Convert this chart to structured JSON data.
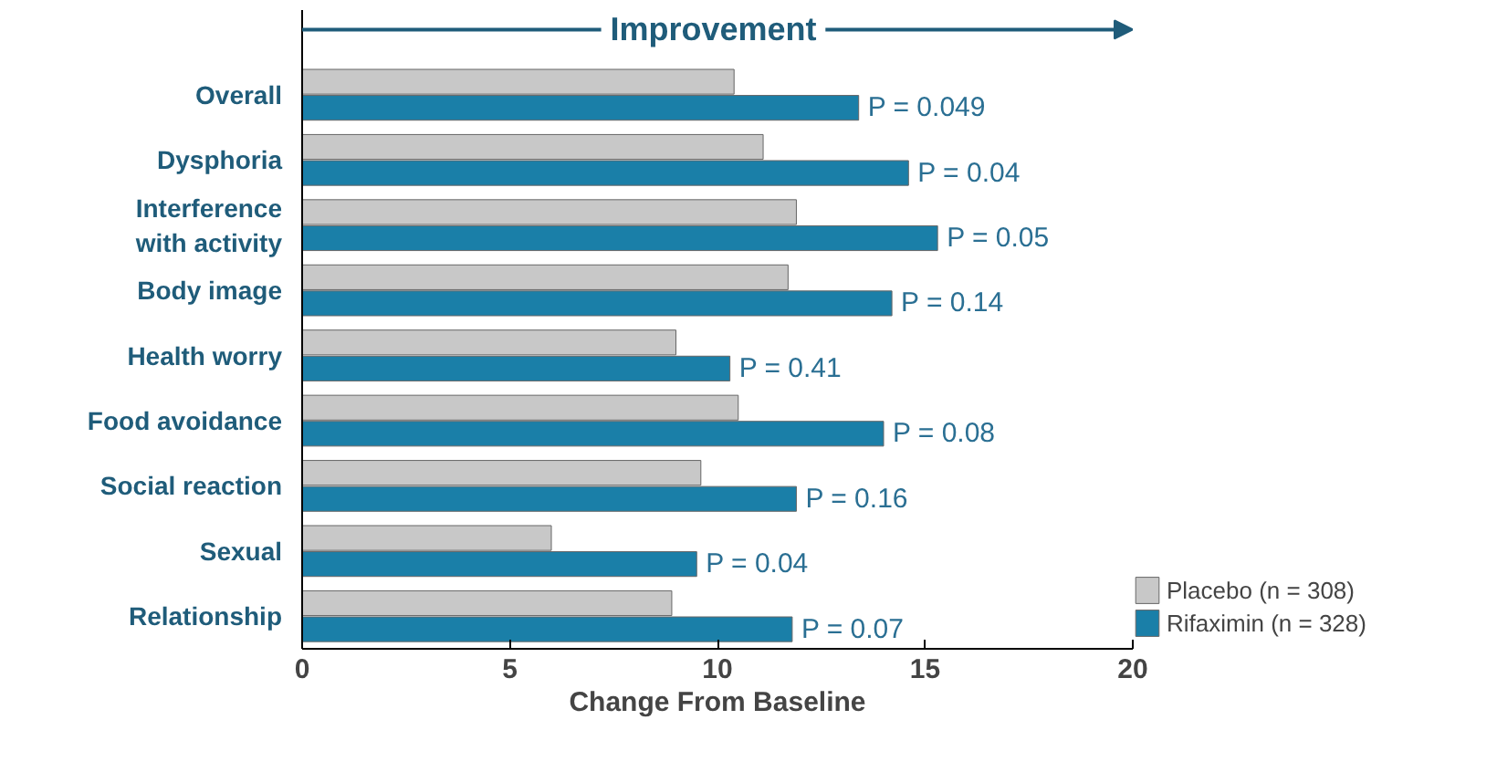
{
  "chart_data": {
    "type": "bar",
    "orientation": "horizontal",
    "xlabel": "Change From Baseline",
    "annotations": [
      "Improvement",
      {
        "text": "P = 0.049",
        "x": 13.4,
        "y": "Overall"
      },
      {
        "text": "P = 0.04",
        "x": 14.6,
        "y": "Dysphoria"
      },
      {
        "text": "P = 0.05",
        "x": 15.3,
        "y": "Interference\nwith activity"
      },
      {
        "text": "P = 0.14",
        "x": 14.2,
        "y": "Body image"
      },
      {
        "text": "P = 0.41",
        "x": 10.3,
        "y": "Health worry"
      },
      {
        "text": "P = 0.08",
        "x": 14.0,
        "y": "Food avoidance"
      },
      {
        "text": "P = 0.16",
        "x": 11.9,
        "y": "Social reaction"
      },
      {
        "text": "P = 0.04",
        "x": 9.5,
        "y": "Sexual"
      },
      {
        "text": "P = 0.07",
        "x": 11.8,
        "y": "Relationship"
      }
    ],
    "categories": [
      "Overall",
      "Dysphoria",
      "Interference\nwith activity",
      "Body image",
      "Health worry",
      "Food avoidance",
      "Social reaction",
      "Sexual",
      "Relationship"
    ],
    "series": [
      {
        "name": "Placebo (n = 308)",
        "color": "#c8c8c8",
        "values": [
          10.4,
          11.1,
          11.9,
          11.7,
          9.0,
          10.5,
          9.6,
          6.0,
          8.9
        ]
      },
      {
        "name": "Rifaximin (n = 328)",
        "color": "#1a7fa8",
        "values": [
          13.4,
          14.6,
          15.3,
          14.2,
          10.3,
          14.0,
          11.9,
          9.5,
          11.8
        ]
      }
    ],
    "xlim": [
      0,
      20
    ],
    "xticks": [
      0,
      5,
      10,
      15,
      20
    ],
    "grid": false,
    "legend": "bottom right"
  }
}
